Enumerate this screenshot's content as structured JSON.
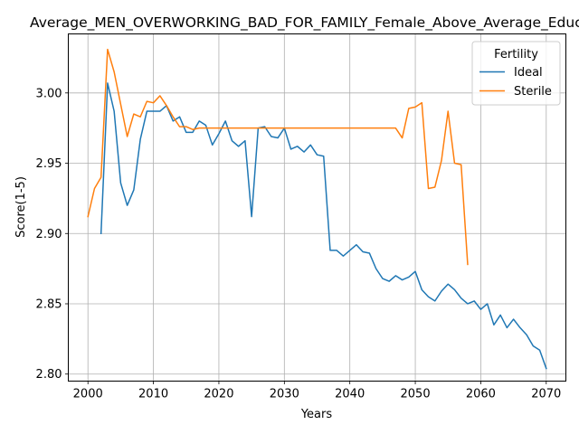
{
  "chart_data": {
    "type": "line",
    "title": "Average_MEN_OVERWORKING_BAD_FOR_FAMILY_Female_Above_Average_Education",
    "xlabel": "Years",
    "ylabel": "Score(1-5)",
    "xlim": [
      1997,
      2073
    ],
    "ylim": [
      2.795,
      3.042
    ],
    "xticks": [
      2000,
      2010,
      2020,
      2030,
      2040,
      2050,
      2060,
      2070
    ],
    "yticks": [
      2.8,
      2.85,
      2.9,
      2.95,
      3.0
    ],
    "ytick_labels": [
      "2.80",
      "2.85",
      "2.90",
      "2.95",
      "3.00"
    ],
    "grid": true,
    "legend": {
      "title": "Fertility",
      "position": "top-right"
    },
    "series": [
      {
        "name": "Ideal",
        "color": "#1f77b4",
        "x": [
          2002,
          2003,
          2004,
          2005,
          2006,
          2007,
          2008,
          2009,
          2010,
          2011,
          2012,
          2013,
          2014,
          2015,
          2016,
          2017,
          2018,
          2019,
          2020,
          2021,
          2022,
          2023,
          2024,
          2025,
          2026,
          2027,
          2028,
          2029,
          2030,
          2031,
          2032,
          2033,
          2034,
          2035,
          2036,
          2037,
          2038,
          2039,
          2040,
          2041,
          2042,
          2043,
          2044,
          2045,
          2046,
          2047,
          2048,
          2049,
          2050,
          2051,
          2052,
          2053,
          2054,
          2055,
          2056,
          2057,
          2058,
          2059,
          2060,
          2061,
          2062,
          2063,
          2064,
          2065,
          2066,
          2067,
          2068,
          2069,
          2070
        ],
        "y": [
          2.9,
          3.007,
          2.987,
          2.936,
          2.92,
          2.931,
          2.967,
          2.987,
          2.987,
          2.987,
          2.991,
          2.98,
          2.983,
          2.972,
          2.972,
          2.98,
          2.977,
          2.963,
          2.971,
          2.98,
          2.966,
          2.962,
          2.966,
          2.912,
          2.975,
          2.976,
          2.969,
          2.968,
          2.975,
          2.96,
          2.962,
          2.958,
          2.963,
          2.956,
          2.955,
          2.888,
          2.888,
          2.884,
          2.888,
          2.892,
          2.887,
          2.886,
          2.875,
          2.868,
          2.866,
          2.87,
          2.867,
          2.869,
          2.873,
          2.86,
          2.855,
          2.852,
          2.859,
          2.864,
          2.86,
          2.854,
          2.85,
          2.852,
          2.846,
          2.85,
          2.835,
          2.842,
          2.833,
          2.839,
          2.833,
          2.828,
          2.82,
          2.817,
          2.804
        ]
      },
      {
        "name": "Sterile",
        "color": "#ff7f0e",
        "x": [
          2000,
          2001,
          2002,
          2003,
          2004,
          2005,
          2006,
          2007,
          2008,
          2009,
          2010,
          2011,
          2012,
          2013,
          2014,
          2015,
          2016,
          2017,
          2018,
          2019,
          2020,
          2021,
          2022,
          2023,
          2024,
          2025,
          2026,
          2027,
          2028,
          2029,
          2030,
          2031,
          2032,
          2033,
          2034,
          2035,
          2036,
          2037,
          2038,
          2039,
          2040,
          2041,
          2042,
          2043,
          2044,
          2045,
          2046,
          2047,
          2048,
          2049,
          2050,
          2051,
          2052,
          2053,
          2054,
          2055,
          2056,
          2057,
          2058
        ],
        "y": [
          2.912,
          2.932,
          2.94,
          3.031,
          3.015,
          2.992,
          2.969,
          2.985,
          2.983,
          2.994,
          2.993,
          2.998,
          2.991,
          2.983,
          2.976,
          2.976,
          2.974,
          2.975,
          2.975,
          2.975,
          2.975,
          2.975,
          2.975,
          2.975,
          2.975,
          2.975,
          2.975,
          2.975,
          2.975,
          2.975,
          2.975,
          2.975,
          2.975,
          2.975,
          2.975,
          2.975,
          2.975,
          2.975,
          2.975,
          2.975,
          2.975,
          2.975,
          2.975,
          2.975,
          2.975,
          2.975,
          2.975,
          2.975,
          2.968,
          2.989,
          2.99,
          2.993,
          2.932,
          2.933,
          2.952,
          2.987,
          2.95,
          2.949,
          2.878
        ]
      }
    ]
  }
}
